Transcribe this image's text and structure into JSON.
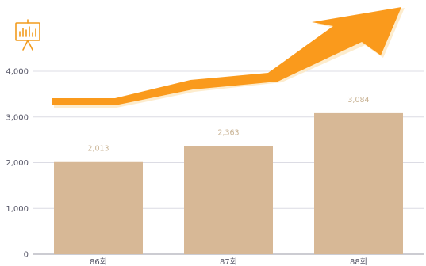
{
  "chart_data": {
    "type": "bar",
    "title": "",
    "xlabel": "",
    "ylabel": "",
    "categories": [
      "86회",
      "87회",
      "88회"
    ],
    "series": [
      {
        "values": [
          2013,
          2363,
          3084
        ]
      }
    ],
    "data_labels": [
      "2,013",
      "2,363",
      "3,084"
    ],
    "ylim": [
      0,
      4000
    ],
    "yticks": [
      0,
      1000,
      2000,
      3000,
      4000
    ],
    "ytick_labels": [
      "0",
      "1,000",
      "2,000",
      "3,000",
      "4,000"
    ],
    "grid": true,
    "legend": "none",
    "trend_arrow": "rising",
    "icon": "presentation-board-chart-icon",
    "colors": {
      "bar": "#d7b896",
      "arrow": "#fa9a1c",
      "arrow_shadow": "#fde9c4",
      "data_label": "#c9b394",
      "grid": "#dcdce4",
      "icon": "#f29b1d"
    }
  }
}
